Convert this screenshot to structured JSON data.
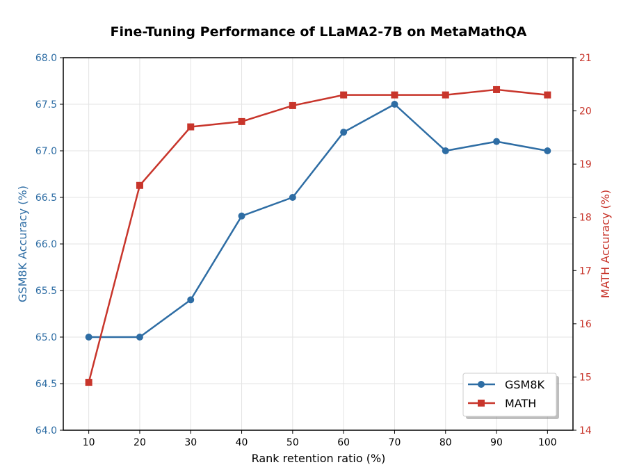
{
  "chart_data": {
    "type": "line",
    "title": "Fine-Tuning Performance of LLaMA2-7B on MetaMathQA",
    "xlabel": "Rank retention ratio (%)",
    "x": [
      10,
      20,
      30,
      40,
      50,
      60,
      70,
      80,
      90,
      100
    ],
    "xticks": [
      "10",
      "20",
      "30",
      "40",
      "50",
      "60",
      "70",
      "80",
      "90",
      "100"
    ],
    "xlim": [
      5,
      105
    ],
    "grid": true,
    "legend_position": "bottom-right",
    "series": [
      {
        "name": "GSM8K",
        "axis": "left",
        "marker": "circle",
        "color": "#2e6da4",
        "values": [
          65.0,
          65.0,
          65.4,
          66.3,
          66.5,
          67.2,
          67.5,
          67.0,
          67.1,
          67.0
        ]
      },
      {
        "name": "MATH",
        "axis": "right",
        "marker": "square",
        "color": "#c8352b",
        "values": [
          14.9,
          18.6,
          19.7,
          19.8,
          20.1,
          20.3,
          20.3,
          20.3,
          20.4,
          20.3
        ]
      }
    ],
    "y_left": {
      "label": "GSM8K Accuracy (%)",
      "ylim": [
        64.0,
        68.0
      ],
      "ticks": [
        "64.0",
        "64.5",
        "65.0",
        "65.5",
        "66.0",
        "66.5",
        "67.0",
        "67.5",
        "68.0"
      ],
      "color": "#2e6da4"
    },
    "y_right": {
      "label": "MATH Accuracy (%)",
      "ylim": [
        14,
        21
      ],
      "ticks": [
        "14",
        "15",
        "16",
        "17",
        "18",
        "19",
        "20",
        "21"
      ],
      "color": "#c8352b"
    }
  }
}
